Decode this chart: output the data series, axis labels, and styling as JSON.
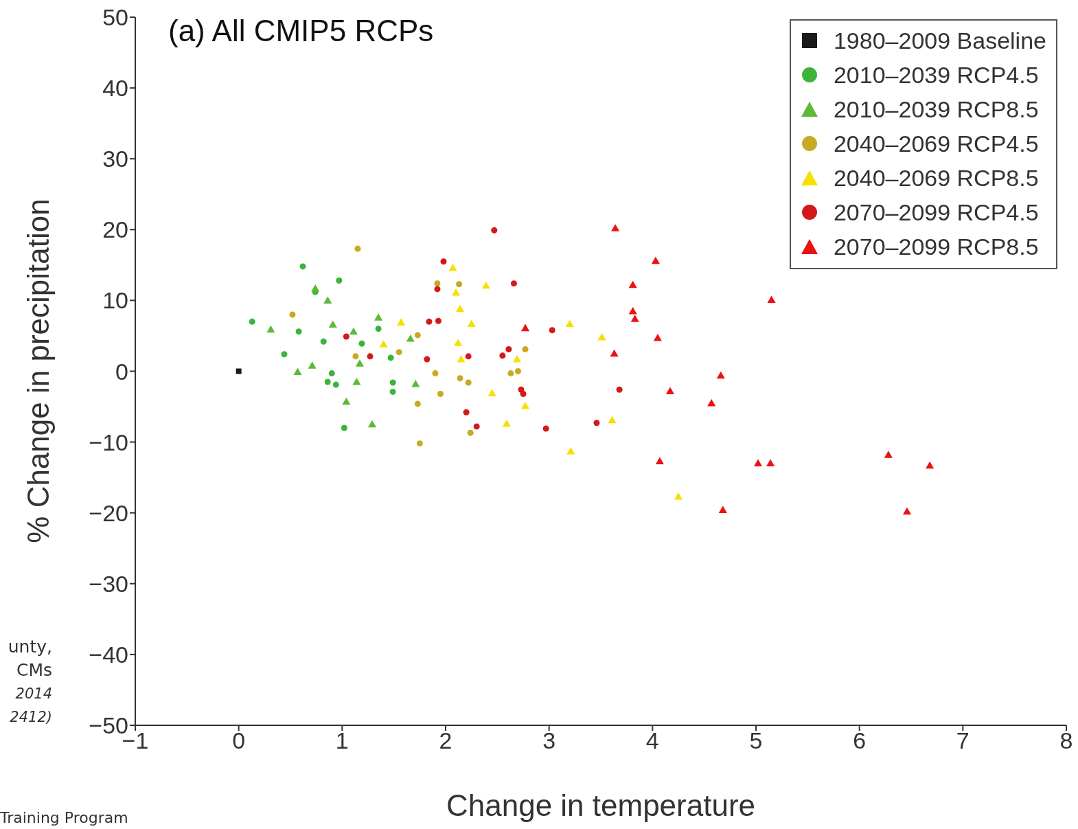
{
  "chart_data": {
    "type": "scatter",
    "title": "(a) All CMIP5 RCPs",
    "xlabel": "Change in temperature",
    "ylabel": "% Change in precipitation",
    "xlim": [
      -1,
      8
    ],
    "xticks": [
      -1,
      0,
      1,
      2,
      3,
      4,
      5,
      6,
      7,
      8
    ],
    "ylim": [
      -50,
      50
    ],
    "yticks": [
      -50,
      -40,
      -30,
      -20,
      -10,
      0,
      10,
      20,
      30,
      40,
      50
    ],
    "grid": false,
    "legend": "top right",
    "annotations": [
      "unty,",
      "CMs",
      "2014",
      "2412)",
      "Training Program"
    ],
    "series": [
      {
        "name": "1980–2009 Baseline",
        "color": "#1a1a1a",
        "marker": "square",
        "x": [
          0
        ],
        "values": [
          0
        ]
      },
      {
        "name": "2010–2039 RCP4.5",
        "color": "#3cb43c",
        "marker": "circle",
        "x": [
          0.62,
          0.97,
          0.13,
          0.58,
          0.44,
          0.82,
          1.19,
          0.9,
          0.94,
          0.86,
          1.02,
          1.49,
          1.49,
          1.47,
          0.74,
          1.35
        ],
        "values": [
          14.8,
          12.8,
          7,
          5.6,
          2.4,
          4.2,
          3.9,
          -0.3,
          -1.9,
          -1.5,
          -8,
          -1.6,
          -2.9,
          1.9,
          11.2,
          6
        ]
      },
      {
        "name": "2010–2039 RCP8.5",
        "color": "#5cba38",
        "marker": "triangle",
        "x": [
          0.74,
          0.86,
          0.31,
          0.91,
          1.11,
          1.35,
          0.57,
          0.71,
          1.14,
          1.04,
          1.29,
          1.71,
          1.66,
          1.17
        ],
        "values": [
          11.6,
          9.9,
          5.8,
          6.5,
          5.5,
          7.5,
          -0.2,
          0.7,
          -1.6,
          -4.4,
          -7.6,
          -1.9,
          4.5,
          1
        ]
      },
      {
        "name": "2040–2069 RCP4.5",
        "color": "#c8aa22",
        "marker": "circle",
        "x": [
          1.15,
          0.52,
          1.13,
          1.55,
          1.73,
          1.9,
          1.95,
          1.73,
          1.75,
          2.13,
          2.14,
          2.22,
          2.63,
          2.77,
          2.24,
          1.92,
          2.7
        ],
        "values": [
          17.3,
          8,
          2.1,
          2.7,
          5.1,
          -0.3,
          -3.2,
          -4.6,
          -10.2,
          12.3,
          -1,
          -1.6,
          -0.3,
          3.1,
          -8.7,
          12.4,
          0
        ]
      },
      {
        "name": "2040–2069 RCP8.5",
        "color": "#f5e000",
        "marker": "triangle",
        "x": [
          2.07,
          2.39,
          2.1,
          2.14,
          2.25,
          2.12,
          2.15,
          2.45,
          2.59,
          2.77,
          2.69,
          3.2,
          3.51,
          3.61,
          3.21,
          1.57,
          1.4,
          4.25
        ],
        "values": [
          14.5,
          12,
          11,
          8.7,
          6.6,
          3.9,
          1.6,
          -3.2,
          -7.5,
          -5,
          1.6,
          6.6,
          4.7,
          -7,
          -11.4,
          6.8,
          3.7,
          -17.8
        ]
      },
      {
        "name": "2070–2099 RCP4.5",
        "color": "#d21a1a",
        "marker": "circle",
        "x": [
          2.47,
          1.98,
          1.92,
          2.66,
          1.84,
          1.82,
          2.22,
          2.2,
          2.3,
          2.61,
          2.55,
          2.73,
          2.75,
          3.03,
          2.97,
          3.46,
          3.68,
          1.04,
          1.27,
          1.93
        ],
        "values": [
          19.9,
          15.5,
          11.6,
          12.4,
          7,
          1.7,
          2.1,
          -5.8,
          -7.8,
          3.1,
          2.2,
          -2.6,
          -3.2,
          5.8,
          -8.1,
          -7.3,
          -2.6,
          4.9,
          2.1,
          7.1
        ]
      },
      {
        "name": "2070–2099 RCP8.5",
        "color": "#ec1111",
        "marker": "triangle",
        "x": [
          3.64,
          4.03,
          3.81,
          3.81,
          3.83,
          5.15,
          2.77,
          4.05,
          3.63,
          4.66,
          4.17,
          4.57,
          4.07,
          5.02,
          5.14,
          4.68,
          6.28,
          6.68,
          6.46
        ],
        "values": [
          20.1,
          15.5,
          12.1,
          8.4,
          7.3,
          10,
          6,
          4.6,
          2.4,
          -0.7,
          -2.9,
          -4.6,
          -12.8,
          -13.1,
          -13.1,
          -19.7,
          -11.9,
          -13.4,
          -19.9
        ]
      }
    ]
  }
}
